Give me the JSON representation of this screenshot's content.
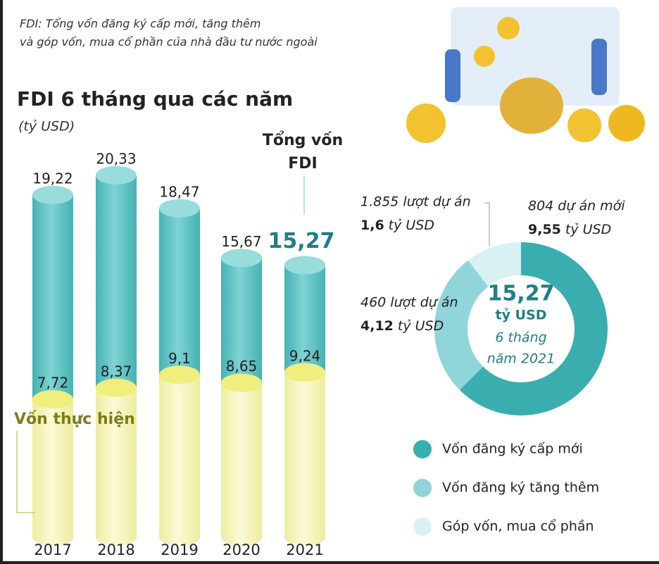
{
  "chart_data": [
    {
      "type": "bar",
      "note": "FDI: Tổng vốn đăng ký cấp mới, tăng thêm và góp vốn, mua cổ phần của nhà đầu tư nước ngoài",
      "title": "FDI 6 tháng qua các năm",
      "subtitle": "(tỷ USD)",
      "categories": [
        "2017",
        "2018",
        "2019",
        "2020",
        "2021"
      ],
      "ylim": [
        0,
        21
      ],
      "series": [
        {
          "name": "Tổng vốn FDI",
          "color": "#5ec4c5",
          "values": [
            19.22,
            20.33,
            18.47,
            15.67,
            15.27
          ],
          "value_labels": [
            "19,22",
            "20,33",
            "18,47",
            "15,67",
            "15,27"
          ]
        },
        {
          "name": "Vốn thực hiện",
          "color": "#f4f3b8",
          "values": [
            7.72,
            8.37,
            9.1,
            8.65,
            9.24
          ],
          "value_labels": [
            "7,72",
            "8,37",
            "9,1",
            "8,65",
            "9,24"
          ]
        }
      ]
    },
    {
      "type": "donut",
      "categories": [
        "Vốn đăng ký cấp mới",
        "Vốn đăng ký tăng thêm",
        "Góp vốn, mua cổ phần"
      ],
      "values": [
        9.55,
        4.12,
        1.6
      ],
      "value_labels": [
        "9,55",
        "4,12",
        "1,6"
      ],
      "unit": "tỷ USD",
      "project_labels": [
        "804 dự án mới",
        "460 lượt dự án",
        "1.855 lượt dự án"
      ],
      "colors": [
        "#3aaeae",
        "#8fd5da",
        "#d9f1f3"
      ],
      "center_text": [
        "15,27",
        "tỷ USD",
        "6 tháng",
        "năm 2021"
      ]
    }
  ]
}
